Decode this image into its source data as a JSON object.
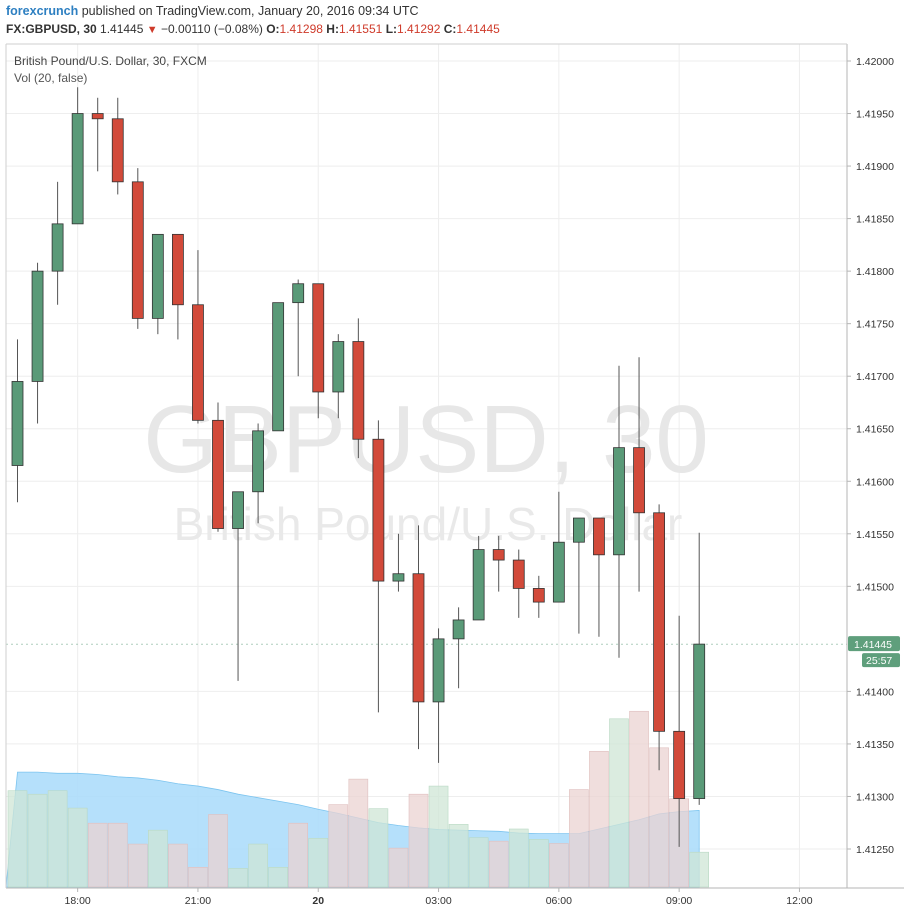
{
  "header": {
    "author": "forexcrunch",
    "published_text": "published on TradingView.com, January 20, 2016 09:34 UTC",
    "symbol": "FX:GBPUSD, 30",
    "last": "1.41445",
    "change": "−0.00110 (−0.08%)",
    "o_label": "O:",
    "o_value": "1.41298",
    "h_label": "H:",
    "h_value": "1.41551",
    "l_label": "L:",
    "l_value": "1.41292",
    "c_label": "C:",
    "c_value": "1.41445"
  },
  "legend": {
    "title": "British Pound/U.S. Dollar, 30, FXCM",
    "volume": "Vol (20, false)"
  },
  "watermark": {
    "line1": "GBPUSD, 30",
    "line2": "British Pound/U.S. Dollar"
  },
  "badges": {
    "price": "1.41445",
    "timer": "25:57"
  },
  "colors": {
    "up": "#5a9a78",
    "down": "#d24a3a",
    "price_badge": "#5f9f7c",
    "volume_ma": "#a8dbfa",
    "volume_up": "#cfe6d6",
    "volume_down": "#ebd3d2"
  },
  "chart_data": {
    "type": "candlestick",
    "title": "British Pound/U.S. Dollar, 30, FXCM",
    "ylim": [
      1.41205,
      1.42025
    ],
    "y_ticks": [
      "1.42000",
      "1.41950",
      "1.41900",
      "1.41850",
      "1.41800",
      "1.41750",
      "1.41700",
      "1.41650",
      "1.41600",
      "1.41550",
      "1.41500",
      "1.41400",
      "1.41350",
      "1.41300",
      "1.41250"
    ],
    "x_ticks": [
      "18:00",
      "21:00",
      "20",
      "03:00",
      "06:00",
      "09:00",
      "12:00"
    ],
    "x_bold": "20",
    "candles": [
      {
        "o": 1.41615,
        "h": 1.41735,
        "l": 1.4158,
        "c": 1.41695
      },
      {
        "o": 1.41695,
        "h": 1.41808,
        "l": 1.41655,
        "c": 1.418
      },
      {
        "o": 1.418,
        "h": 1.41885,
        "l": 1.41768,
        "c": 1.41845
      },
      {
        "o": 1.41845,
        "h": 1.41975,
        "l": 1.41845,
        "c": 1.4195
      },
      {
        "o": 1.4195,
        "h": 1.41965,
        "l": 1.41895,
        "c": 1.41945
      },
      {
        "o": 1.41945,
        "h": 1.41965,
        "l": 1.41873,
        "c": 1.41885
      },
      {
        "o": 1.41885,
        "h": 1.41898,
        "l": 1.41745,
        "c": 1.41755
      },
      {
        "o": 1.41755,
        "h": 1.41835,
        "l": 1.4174,
        "c": 1.41835
      },
      {
        "o": 1.41835,
        "h": 1.41835,
        "l": 1.41735,
        "c": 1.41768
      },
      {
        "o": 1.41768,
        "h": 1.4182,
        "l": 1.41655,
        "c": 1.41658
      },
      {
        "o": 1.41658,
        "h": 1.41675,
        "l": 1.41552,
        "c": 1.41555
      },
      {
        "o": 1.41555,
        "h": 1.4159,
        "l": 1.4141,
        "c": 1.4159
      },
      {
        "o": 1.4159,
        "h": 1.41655,
        "l": 1.4156,
        "c": 1.41648
      },
      {
        "o": 1.41648,
        "h": 1.4177,
        "l": 1.41648,
        "c": 1.4177
      },
      {
        "o": 1.4177,
        "h": 1.41792,
        "l": 1.417,
        "c": 1.41788
      },
      {
        "o": 1.41788,
        "h": 1.41788,
        "l": 1.4166,
        "c": 1.41685
      },
      {
        "o": 1.41685,
        "h": 1.4174,
        "l": 1.4166,
        "c": 1.41733
      },
      {
        "o": 1.41733,
        "h": 1.41755,
        "l": 1.41622,
        "c": 1.4164
      },
      {
        "o": 1.4164,
        "h": 1.41658,
        "l": 1.4138,
        "c": 1.41505
      },
      {
        "o": 1.41505,
        "h": 1.4155,
        "l": 1.41495,
        "c": 1.41512
      },
      {
        "o": 1.41512,
        "h": 1.41558,
        "l": 1.41345,
        "c": 1.4139
      },
      {
        "o": 1.4139,
        "h": 1.4146,
        "l": 1.41332,
        "c": 1.4145
      },
      {
        "o": 1.4145,
        "h": 1.4148,
        "l": 1.41403,
        "c": 1.41468
      },
      {
        "o": 1.41468,
        "h": 1.41548,
        "l": 1.41468,
        "c": 1.41535
      },
      {
        "o": 1.41535,
        "h": 1.41548,
        "l": 1.41495,
        "c": 1.41525
      },
      {
        "o": 1.41525,
        "h": 1.41535,
        "l": 1.4147,
        "c": 1.41498
      },
      {
        "o": 1.41498,
        "h": 1.4151,
        "l": 1.4147,
        "c": 1.41485
      },
      {
        "o": 1.41485,
        "h": 1.4159,
        "l": 1.41485,
        "c": 1.41542
      },
      {
        "o": 1.41542,
        "h": 1.41565,
        "l": 1.41455,
        "c": 1.41565
      },
      {
        "o": 1.41565,
        "h": 1.41565,
        "l": 1.41452,
        "c": 1.4153
      },
      {
        "o": 1.4153,
        "h": 1.4171,
        "l": 1.41432,
        "c": 1.41632
      },
      {
        "o": 1.41632,
        "h": 1.41718,
        "l": 1.41495,
        "c": 1.4157
      },
      {
        "o": 1.4157,
        "h": 1.41578,
        "l": 1.41325,
        "c": 1.41362
      },
      {
        "o": 1.41362,
        "h": 1.41472,
        "l": 1.41252,
        "c": 1.41298
      },
      {
        "o": 1.41298,
        "h": 1.41551,
        "l": 1.41292,
        "c": 1.41445
      }
    ],
    "volume": [
      {
        "v": 1660,
        "up": true
      },
      {
        "v": 1600,
        "up": true
      },
      {
        "v": 1660,
        "up": true
      },
      {
        "v": 1360,
        "up": true
      },
      {
        "v": 1100,
        "up": false
      },
      {
        "v": 1100,
        "up": false
      },
      {
        "v": 740,
        "up": false
      },
      {
        "v": 980,
        "up": true
      },
      {
        "v": 740,
        "up": false
      },
      {
        "v": 340,
        "up": false
      },
      {
        "v": 1250,
        "up": false
      },
      {
        "v": 320,
        "up": true
      },
      {
        "v": 740,
        "up": true
      },
      {
        "v": 340,
        "up": true
      },
      {
        "v": 1100,
        "up": false
      },
      {
        "v": 840,
        "up": true
      },
      {
        "v": 1420,
        "up": false
      },
      {
        "v": 1860,
        "up": false
      },
      {
        "v": 1350,
        "up": true
      },
      {
        "v": 670,
        "up": false
      },
      {
        "v": 1600,
        "up": false
      },
      {
        "v": 1740,
        "up": true
      },
      {
        "v": 1080,
        "up": true
      },
      {
        "v": 850,
        "up": true
      },
      {
        "v": 790,
        "up": false
      },
      {
        "v": 1000,
        "up": true
      },
      {
        "v": 820,
        "up": true
      },
      {
        "v": 750,
        "up": false
      },
      {
        "v": 1680,
        "up": false
      },
      {
        "v": 2340,
        "up": false
      },
      {
        "v": 2900,
        "up": true
      },
      {
        "v": 3030,
        "up": false
      },
      {
        "v": 2400,
        "up": false
      },
      {
        "v": 1520,
        "up": false
      },
      {
        "v": 600,
        "up": true
      }
    ],
    "volume_ma": [
      1980,
      1980,
      1960,
      1960,
      1940,
      1900,
      1880,
      1840,
      1780,
      1740,
      1680,
      1600,
      1540,
      1480,
      1420,
      1340,
      1270,
      1190,
      1110,
      1060,
      1020,
      990,
      980,
      970,
      960,
      930,
      920,
      920,
      920,
      1000,
      1080,
      1160,
      1260,
      1300,
      1320
    ]
  }
}
